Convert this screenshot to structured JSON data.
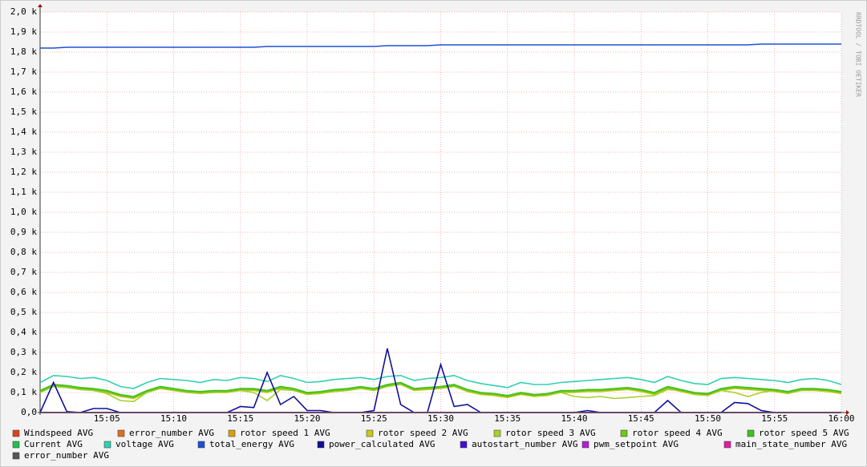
{
  "chart_data": {
    "type": "line",
    "watermark": "RRDTOOL / TOBI OETIKER",
    "x": [
      "15:00",
      "15:01",
      "15:02",
      "15:03",
      "15:04",
      "15:05",
      "15:06",
      "15:07",
      "15:08",
      "15:09",
      "15:10",
      "15:11",
      "15:12",
      "15:13",
      "15:14",
      "15:15",
      "15:16",
      "15:17",
      "15:18",
      "15:19",
      "15:20",
      "15:21",
      "15:22",
      "15:23",
      "15:24",
      "15:25",
      "15:26",
      "15:27",
      "15:28",
      "15:29",
      "15:30",
      "15:31",
      "15:32",
      "15:33",
      "15:34",
      "15:35",
      "15:36",
      "15:37",
      "15:38",
      "15:39",
      "15:40",
      "15:41",
      "15:42",
      "15:43",
      "15:44",
      "15:45",
      "15:46",
      "15:47",
      "15:48",
      "15:49",
      "15:50",
      "15:51",
      "15:52",
      "15:53",
      "15:54",
      "15:55",
      "15:56",
      "15:57",
      "15:58",
      "15:59",
      "16:00"
    ],
    "xlim": [
      "15:00",
      "16:00"
    ],
    "xticks": [
      "15:05",
      "15:10",
      "15:15",
      "15:20",
      "15:25",
      "15:30",
      "15:35",
      "15:40",
      "15:45",
      "15:50",
      "15:55",
      "16:00"
    ],
    "ylim": [
      0,
      2000
    ],
    "yticks": [
      {
        "value": 0,
        "label": "0,0"
      },
      {
        "value": 100,
        "label": "0,1 k"
      },
      {
        "value": 200,
        "label": "0,2 k"
      },
      {
        "value": 300,
        "label": "0,3 k"
      },
      {
        "value": 400,
        "label": "0,4 k"
      },
      {
        "value": 500,
        "label": "0,5 k"
      },
      {
        "value": 600,
        "label": "0,6 k"
      },
      {
        "value": 700,
        "label": "0,7 k"
      },
      {
        "value": 800,
        "label": "0,8 k"
      },
      {
        "value": 900,
        "label": "0,9 k"
      },
      {
        "value": 1000,
        "label": "1,0 k"
      },
      {
        "value": 1100,
        "label": "1,1 k"
      },
      {
        "value": 1200,
        "label": "1,2 k"
      },
      {
        "value": 1300,
        "label": "1,3 k"
      },
      {
        "value": 1400,
        "label": "1,4 k"
      },
      {
        "value": 1500,
        "label": "1,5 k"
      },
      {
        "value": 1600,
        "label": "1,6 k"
      },
      {
        "value": 1700,
        "label": "1,7 k"
      },
      {
        "value": 1800,
        "label": "1,8 k"
      },
      {
        "value": 1900,
        "label": "1,9 k"
      },
      {
        "value": 2000,
        "label": "2,0 k"
      }
    ],
    "grid": true,
    "series": [
      {
        "name": "Windspeed AVG",
        "color": "#e0441c",
        "values": [
          0,
          0,
          0,
          0,
          0,
          0,
          0,
          0,
          0,
          0,
          0,
          0,
          0,
          0,
          0,
          0,
          0,
          0,
          0,
          0,
          0,
          0,
          0,
          0,
          0,
          0,
          0,
          0,
          0,
          0,
          0,
          0,
          0,
          0,
          0,
          0,
          0,
          0,
          0,
          0,
          0,
          0,
          0,
          0,
          0,
          0,
          0,
          0,
          0,
          0,
          0,
          0,
          0,
          0,
          0,
          0,
          0,
          0,
          0,
          0,
          0
        ]
      },
      {
        "name": "error_number AVG",
        "color": "#e07020",
        "values": [
          0,
          0,
          0,
          0,
          0,
          0,
          0,
          0,
          0,
          0,
          0,
          0,
          0,
          0,
          0,
          0,
          0,
          0,
          0,
          0,
          0,
          0,
          0,
          0,
          0,
          0,
          0,
          0,
          0,
          0,
          0,
          0,
          0,
          0,
          0,
          0,
          0,
          0,
          0,
          0,
          0,
          0,
          0,
          0,
          0,
          0,
          0,
          0,
          0,
          0,
          0,
          0,
          0,
          0,
          0,
          0,
          0,
          0,
          0,
          0,
          0
        ]
      },
      {
        "name": "rotor speed 1 AVG",
        "color": "#d8a010",
        "values": [
          0,
          0,
          0,
          0,
          0,
          0,
          0,
          0,
          0,
          0,
          0,
          0,
          0,
          0,
          0,
          0,
          0,
          0,
          0,
          0,
          0,
          0,
          0,
          0,
          0,
          0,
          0,
          0,
          0,
          0,
          0,
          0,
          0,
          0,
          0,
          0,
          0,
          0,
          0,
          0,
          0,
          0,
          0,
          0,
          0,
          0,
          0,
          0,
          0,
          0,
          0,
          0,
          0,
          0,
          0,
          0,
          0,
          0,
          0,
          0,
          0
        ]
      },
      {
        "name": "rotor speed 2 AVG",
        "color": "#c8c81c",
        "values": [
          100,
          130,
          125,
          115,
          110,
          100,
          80,
          70,
          100,
          120,
          110,
          100,
          95,
          100,
          100,
          110,
          110,
          100,
          120,
          110,
          90,
          95,
          105,
          110,
          120,
          110,
          130,
          140,
          110,
          115,
          120,
          130,
          105,
          90,
          85,
          75,
          90,
          80,
          85,
          100,
          100,
          105,
          105,
          110,
          115,
          105,
          90,
          120,
          105,
          90,
          85,
          110,
          120,
          115,
          110,
          105,
          95,
          110,
          110,
          105,
          95
        ]
      },
      {
        "name": "rotor speed 3 AVG",
        "color": "#a8d030",
        "values": [
          100,
          130,
          125,
          115,
          110,
          95,
          60,
          55,
          100,
          120,
          110,
          100,
          100,
          100,
          105,
          110,
          100,
          60,
          115,
          110,
          95,
          100,
          105,
          110,
          120,
          115,
          130,
          140,
          115,
          120,
          125,
          130,
          110,
          95,
          90,
          80,
          95,
          85,
          90,
          100,
          80,
          75,
          80,
          70,
          75,
          80,
          85,
          115,
          110,
          95,
          90,
          110,
          100,
          80,
          100,
          110,
          100,
          110,
          115,
          110,
          100
        ]
      },
      {
        "name": "rotor speed 4 AVG",
        "color": "#6cc818",
        "values": [
          105,
          135,
          130,
          120,
          115,
          105,
          85,
          75,
          105,
          125,
          115,
          105,
          100,
          105,
          105,
          115,
          115,
          105,
          125,
          115,
          95,
          100,
          110,
          115,
          125,
          115,
          135,
          145,
          115,
          120,
          125,
          135,
          110,
          95,
          90,
          80,
          95,
          85,
          90,
          105,
          105,
          110,
          110,
          115,
          120,
          110,
          95,
          125,
          110,
          95,
          90,
          115,
          125,
          120,
          115,
          110,
          100,
          115,
          115,
          110,
          100
        ]
      },
      {
        "name": "rotor speed 5 AVG",
        "color": "#40c020",
        "values": [
          110,
          140,
          135,
          125,
          120,
          110,
          90,
          80,
          110,
          130,
          120,
          110,
          105,
          110,
          110,
          120,
          120,
          110,
          130,
          120,
          100,
          105,
          115,
          120,
          130,
          120,
          140,
          150,
          120,
          125,
          130,
          140,
          115,
          100,
          95,
          85,
          100,
          90,
          95,
          110,
          110,
          115,
          115,
          120,
          125,
          115,
          100,
          130,
          115,
          100,
          95,
          120,
          130,
          125,
          120,
          115,
          105,
          120,
          120,
          115,
          105
        ]
      },
      {
        "name": "Current AVG",
        "color": "#20c050",
        "values": [
          0,
          0,
          0,
          0,
          0,
          0,
          0,
          0,
          0,
          0,
          0,
          0,
          0,
          0,
          0,
          0,
          0,
          0,
          0,
          0,
          0,
          0,
          0,
          0,
          0,
          0,
          0,
          0,
          0,
          0,
          0,
          0,
          0,
          0,
          0,
          0,
          0,
          0,
          0,
          0,
          0,
          0,
          0,
          0,
          0,
          0,
          0,
          0,
          0,
          0,
          0,
          0,
          0,
          0,
          0,
          0,
          0,
          0,
          0,
          0,
          0
        ]
      },
      {
        "name": "voltage AVG",
        "color": "#30d0b0",
        "values": [
          150,
          185,
          180,
          170,
          175,
          160,
          130,
          120,
          150,
          170,
          165,
          160,
          150,
          165,
          160,
          175,
          170,
          155,
          185,
          170,
          150,
          155,
          165,
          170,
          175,
          165,
          180,
          185,
          160,
          170,
          175,
          185,
          160,
          145,
          135,
          125,
          150,
          140,
          140,
          150,
          155,
          160,
          165,
          170,
          175,
          165,
          150,
          180,
          160,
          145,
          140,
          170,
          175,
          170,
          165,
          160,
          150,
          165,
          170,
          160,
          140
        ]
      },
      {
        "name": "total_energy AVG",
        "color": "#1f50d0",
        "values": [
          1820,
          1820,
          1824,
          1824,
          1824,
          1824,
          1824,
          1824,
          1824,
          1824,
          1824,
          1824,
          1824,
          1824,
          1824,
          1824,
          1824,
          1828,
          1828,
          1828,
          1828,
          1828,
          1828,
          1828,
          1828,
          1828,
          1832,
          1832,
          1832,
          1832,
          1836,
          1836,
          1836,
          1836,
          1836,
          1836,
          1836,
          1836,
          1836,
          1836,
          1836,
          1836,
          1836,
          1836,
          1836,
          1836,
          1836,
          1836,
          1836,
          1836,
          1836,
          1836,
          1836,
          1836,
          1840,
          1840,
          1840,
          1840,
          1840,
          1840,
          1840
        ]
      },
      {
        "name": "power_calculated AVG",
        "color": "#10109a",
        "values": [
          0,
          150,
          5,
          0,
          20,
          20,
          0,
          0,
          0,
          0,
          0,
          0,
          0,
          0,
          0,
          30,
          25,
          200,
          40,
          80,
          10,
          10,
          0,
          0,
          0,
          10,
          320,
          40,
          0,
          0,
          240,
          30,
          40,
          0,
          0,
          0,
          0,
          0,
          0,
          0,
          0,
          10,
          0,
          0,
          0,
          0,
          0,
          60,
          0,
          0,
          0,
          0,
          50,
          45,
          10,
          0,
          0,
          0,
          0,
          0,
          0
        ]
      },
      {
        "name": "autostart_number AVG",
        "color": "#4010d0",
        "values": [
          0,
          0,
          0,
          0,
          0,
          0,
          0,
          0,
          0,
          0,
          0,
          0,
          0,
          0,
          0,
          0,
          0,
          0,
          0,
          0,
          0,
          0,
          0,
          0,
          0,
          0,
          0,
          0,
          0,
          0,
          0,
          0,
          0,
          0,
          0,
          0,
          0,
          0,
          0,
          0,
          0,
          0,
          0,
          0,
          0,
          0,
          0,
          0,
          0,
          0,
          0,
          0,
          0,
          0,
          0,
          0,
          0,
          0,
          0,
          0,
          0
        ]
      },
      {
        "name": "pwm_setpoint AVG",
        "color": "#b020d0",
        "values": [
          0,
          0,
          0,
          0,
          0,
          0,
          0,
          0,
          0,
          0,
          0,
          0,
          0,
          0,
          0,
          0,
          0,
          0,
          0,
          0,
          0,
          0,
          0,
          0,
          0,
          0,
          0,
          0,
          0,
          0,
          0,
          0,
          0,
          0,
          0,
          0,
          0,
          0,
          0,
          0,
          0,
          0,
          0,
          0,
          0,
          0,
          0,
          0,
          0,
          0,
          0,
          0,
          0,
          0,
          0,
          0,
          0,
          0,
          0,
          0,
          0
        ]
      },
      {
        "name": "main_state_number AVG",
        "color": "#e01ca0",
        "values": [
          0,
          0,
          0,
          0,
          0,
          0,
          0,
          0,
          0,
          0,
          0,
          0,
          0,
          0,
          0,
          0,
          0,
          0,
          0,
          0,
          0,
          0,
          0,
          0,
          0,
          0,
          0,
          0,
          0,
          0,
          0,
          0,
          0,
          0,
          0,
          0,
          0,
          0,
          0,
          0,
          0,
          0,
          0,
          0,
          0,
          0,
          0,
          0,
          0,
          0,
          0,
          0,
          0,
          0,
          0,
          0,
          0,
          0,
          0,
          0,
          0
        ]
      },
      {
        "name": "error_number AVG",
        "color": "#555555",
        "values": [
          0,
          0,
          0,
          0,
          0,
          0,
          0,
          0,
          0,
          0,
          0,
          0,
          0,
          0,
          0,
          0,
          0,
          0,
          0,
          0,
          0,
          0,
          0,
          0,
          0,
          0,
          0,
          0,
          0,
          0,
          0,
          0,
          0,
          0,
          0,
          0,
          0,
          0,
          0,
          0,
          0,
          0,
          0,
          0,
          0,
          0,
          0,
          0,
          0,
          0,
          0,
          0,
          0,
          0,
          0,
          0,
          0,
          0,
          0,
          0,
          0
        ]
      }
    ]
  }
}
